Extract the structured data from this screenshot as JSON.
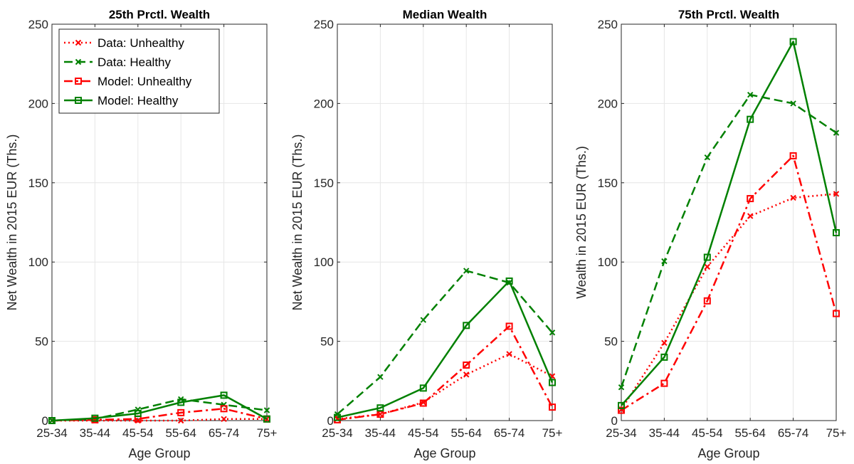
{
  "chart_data": [
    {
      "type": "line",
      "title": "25th Prctl. Wealth",
      "xlabel": "Age Group",
      "ylabel": "Net Wealth in 2015 EUR (Ths.)",
      "categories": [
        "25-34",
        "35-44",
        "45-54",
        "55-64",
        "65-74",
        "75+"
      ],
      "ylim": [
        0,
        250
      ],
      "yticks": [
        0,
        50,
        100,
        150,
        200,
        250
      ],
      "grid": true,
      "legend": "top-left",
      "series": [
        {
          "name": "Data: Unhealthy",
          "values": [
            0,
            0,
            0,
            0,
            1,
            1
          ],
          "color": "#ff0000",
          "style": "dotted",
          "marker": "x"
        },
        {
          "name": "Data: Healthy",
          "values": [
            0,
            1,
            7,
            13.5,
            10,
            6.5
          ],
          "color": "#008000",
          "style": "dashed",
          "marker": "x"
        },
        {
          "name": "Model: Unhealthy",
          "values": [
            0,
            0.5,
            1,
            5,
            7.5,
            1
          ],
          "color": "#ff0000",
          "style": "dashdot",
          "marker": "square"
        },
        {
          "name": "Model: Healthy",
          "values": [
            0,
            1.5,
            4.5,
            11.5,
            16,
            1
          ],
          "color": "#008000",
          "style": "solid",
          "marker": "square"
        }
      ]
    },
    {
      "type": "line",
      "title": "Median Wealth",
      "xlabel": "Age Group",
      "ylabel": "Net Wealth in 2015 EUR (Ths.)",
      "categories": [
        "25-34",
        "35-44",
        "45-54",
        "55-64",
        "65-74",
        "75+"
      ],
      "ylim": [
        0,
        250
      ],
      "yticks": [
        0,
        50,
        100,
        150,
        200,
        250
      ],
      "grid": true,
      "series": [
        {
          "name": "Data: Unhealthy",
          "values": [
            1,
            4,
            11.5,
            29,
            42,
            28
          ],
          "color": "#ff0000",
          "style": "dotted",
          "marker": "x"
        },
        {
          "name": "Data: Healthy",
          "values": [
            4,
            27.5,
            63.5,
            94.5,
            87,
            55.5
          ],
          "color": "#008000",
          "style": "dashed",
          "marker": "x"
        },
        {
          "name": "Model: Unhealthy",
          "values": [
            0.5,
            4,
            11,
            35,
            59.5,
            8.5
          ],
          "color": "#ff0000",
          "style": "dashdot",
          "marker": "square"
        },
        {
          "name": "Model: Healthy",
          "values": [
            2,
            8,
            20.5,
            60,
            88,
            24
          ],
          "color": "#008000",
          "style": "solid",
          "marker": "square"
        }
      ]
    },
    {
      "type": "line",
      "title": "75th Prctl. Wealth",
      "xlabel": "Age Group",
      "ylabel": "Wealth in 2015 EUR (Ths.)",
      "categories": [
        "25-34",
        "35-44",
        "45-54",
        "55-64",
        "65-74",
        "75+"
      ],
      "ylim": [
        0,
        250
      ],
      "yticks": [
        0,
        50,
        100,
        150,
        200,
        250
      ],
      "grid": true,
      "series": [
        {
          "name": "Data: Unhealthy",
          "values": [
            7,
            49,
            97,
            129,
            140.5,
            143
          ],
          "color": "#ff0000",
          "style": "dotted",
          "marker": "x"
        },
        {
          "name": "Data: Healthy",
          "values": [
            21,
            100.5,
            166,
            205.5,
            200,
            181.5
          ],
          "color": "#008000",
          "style": "dashed",
          "marker": "x"
        },
        {
          "name": "Model: Unhealthy",
          "values": [
            6.5,
            23.5,
            75.5,
            140,
            167,
            67.5
          ],
          "color": "#ff0000",
          "style": "dashdot",
          "marker": "square"
        },
        {
          "name": "Model: Healthy",
          "values": [
            9.5,
            40,
            103,
            190,
            239,
            118.5
          ],
          "color": "#008000",
          "style": "solid",
          "marker": "square"
        }
      ]
    }
  ]
}
